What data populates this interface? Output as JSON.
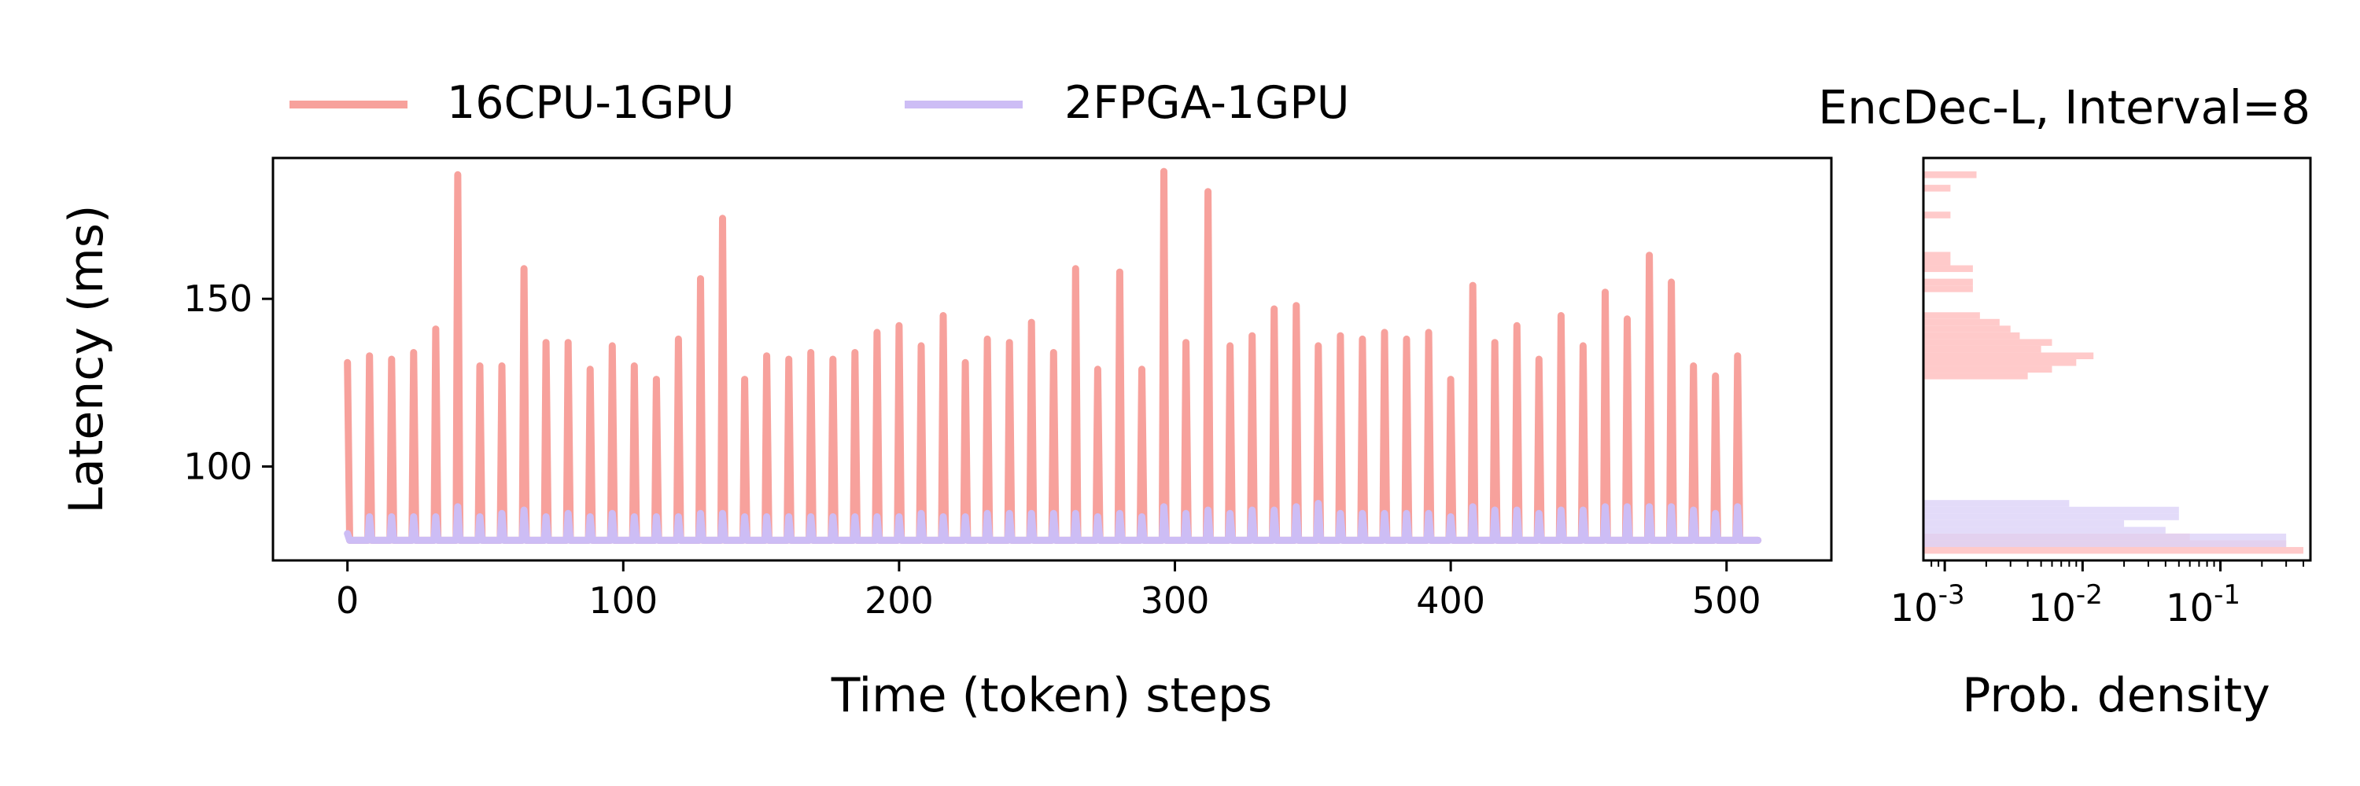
{
  "legend": {
    "placement": "top-left",
    "entries": [
      {
        "label": "16CPU-1GPU",
        "color": "#f7a19c"
      },
      {
        "label": "2FPGA-1GPU",
        "color": "#cdbdf5"
      }
    ]
  },
  "panel_title": "EncDec-L, Interval=8",
  "chart_data": [
    {
      "type": "line",
      "xlabel": "Time (token) steps",
      "ylabel": "Latency (ms)",
      "xlim": [
        -27,
        538
      ],
      "ylim": [
        72,
        192
      ],
      "xticks": [
        0,
        100,
        200,
        300,
        400,
        500
      ],
      "yticks": [
        100,
        150
      ],
      "grid": false,
      "period": 8,
      "series": [
        {
          "name": "16CPU-1GPU",
          "color": "#f7a19c",
          "baseline_ms": 78,
          "spike_steps": [
            0,
            8,
            16,
            24,
            32,
            40,
            48,
            56,
            64,
            72,
            80,
            88,
            96,
            104,
            112,
            120,
            128,
            136,
            144,
            152,
            160,
            168,
            176,
            184,
            192,
            200,
            208,
            216,
            224,
            232,
            240,
            248,
            256,
            264,
            272,
            280,
            288,
            296,
            304,
            312,
            320,
            328,
            336,
            344,
            352,
            360,
            368,
            376,
            384,
            392,
            400,
            408,
            416,
            424,
            432,
            440,
            448,
            456,
            464,
            472,
            480,
            488,
            496,
            504
          ],
          "spike_values": [
            131,
            133,
            132,
            134,
            141,
            187,
            130,
            130,
            159,
            137,
            137,
            129,
            136,
            130,
            126,
            138,
            156,
            174,
            126,
            133,
            132,
            134,
            132,
            134,
            140,
            142,
            136,
            145,
            131,
            138,
            137,
            143,
            134,
            159,
            129,
            158,
            129,
            188,
            137,
            182,
            136,
            139,
            147,
            148,
            136,
            139,
            138,
            140,
            138,
            140,
            126,
            154,
            137,
            142,
            132,
            145,
            136,
            152,
            144,
            163,
            155,
            130,
            127,
            133
          ]
        },
        {
          "name": "2FPGA-1GPU",
          "color": "#cdbdf5",
          "baseline_ms": 78,
          "spike_steps": [
            0,
            8,
            16,
            24,
            32,
            40,
            48,
            56,
            64,
            72,
            80,
            88,
            96,
            104,
            112,
            120,
            128,
            136,
            144,
            152,
            160,
            168,
            176,
            184,
            192,
            200,
            208,
            216,
            224,
            232,
            240,
            248,
            256,
            264,
            272,
            280,
            288,
            296,
            304,
            312,
            320,
            328,
            336,
            344,
            352,
            360,
            368,
            376,
            384,
            392,
            400,
            408,
            416,
            424,
            432,
            440,
            448,
            456,
            464,
            472,
            480,
            488,
            496,
            504
          ],
          "spike_values": [
            80,
            85,
            85,
            85,
            85,
            88,
            85,
            86,
            87,
            85,
            86,
            85,
            86,
            85,
            85,
            85,
            86,
            86,
            85,
            85,
            85,
            85,
            85,
            85,
            85,
            85,
            86,
            85,
            85,
            86,
            86,
            86,
            86,
            86,
            85,
            86,
            85,
            88,
            86,
            87,
            86,
            87,
            87,
            88,
            89,
            86,
            86,
            86,
            86,
            86,
            85,
            88,
            87,
            87,
            86,
            87,
            87,
            88,
            88,
            88,
            88,
            87,
            86,
            88
          ]
        }
      ]
    },
    {
      "type": "bar",
      "orientation": "horizontal",
      "xlabel": "Prob. density",
      "xscale": "log",
      "xlim": [
        0.0007,
        0.45
      ],
      "xtick_labels": [
        "10^-3",
        "10^-2",
        "10^-1"
      ],
      "ylim": [
        72,
        192
      ],
      "shared_y_with_left": true,
      "series": [
        {
          "name": "16CPU-1GPU",
          "color": "#ffcaca",
          "bins": [
            {
              "y0": 74,
              "y1": 76,
              "density": 0.4
            },
            {
              "y0": 76,
              "y1": 78,
              "density": 0.3
            },
            {
              "y0": 78,
              "y1": 80,
              "density": 0.06
            },
            {
              "y0": 126,
              "y1": 128,
              "density": 0.004
            },
            {
              "y0": 128,
              "y1": 130,
              "density": 0.006
            },
            {
              "y0": 130,
              "y1": 132,
              "density": 0.009
            },
            {
              "y0": 132,
              "y1": 134,
              "density": 0.012
            },
            {
              "y0": 134,
              "y1": 136,
              "density": 0.005
            },
            {
              "y0": 136,
              "y1": 138,
              "density": 0.006
            },
            {
              "y0": 138,
              "y1": 140,
              "density": 0.0035
            },
            {
              "y0": 140,
              "y1": 142,
              "density": 0.003
            },
            {
              "y0": 142,
              "y1": 144,
              "density": 0.0025
            },
            {
              "y0": 144,
              "y1": 146,
              "density": 0.0018
            },
            {
              "y0": 152,
              "y1": 154,
              "density": 0.0016
            },
            {
              "y0": 154,
              "y1": 156,
              "density": 0.0016
            },
            {
              "y0": 158,
              "y1": 160,
              "density": 0.0016
            },
            {
              "y0": 160,
              "y1": 162,
              "density": 0.0011
            },
            {
              "y0": 162,
              "y1": 164,
              "density": 0.0011
            },
            {
              "y0": 174,
              "y1": 176,
              "density": 0.0011
            },
            {
              "y0": 182,
              "y1": 184,
              "density": 0.0011
            },
            {
              "y0": 186,
              "y1": 188,
              "density": 0.0017
            }
          ]
        },
        {
          "name": "2FPGA-1GPU",
          "color": "#dcd2f7",
          "bins": [
            {
              "y0": 76,
              "y1": 78,
              "density": 0.3
            },
            {
              "y0": 78,
              "y1": 80,
              "density": 0.3
            },
            {
              "y0": 80,
              "y1": 82,
              "density": 0.04
            },
            {
              "y0": 82,
              "y1": 84,
              "density": 0.02
            },
            {
              "y0": 84,
              "y1": 86,
              "density": 0.05
            },
            {
              "y0": 86,
              "y1": 88,
              "density": 0.05
            },
            {
              "y0": 88,
              "y1": 90,
              "density": 0.008
            }
          ]
        }
      ]
    }
  ]
}
